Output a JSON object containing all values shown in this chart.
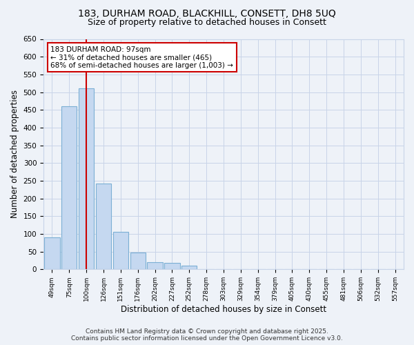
{
  "title1": "183, DURHAM ROAD, BLACKHILL, CONSETT, DH8 5UQ",
  "title2": "Size of property relative to detached houses in Consett",
  "xlabel": "Distribution of detached houses by size in Consett",
  "ylabel": "Number of detached properties",
  "categories": [
    "49sqm",
    "75sqm",
    "100sqm",
    "126sqm",
    "151sqm",
    "176sqm",
    "202sqm",
    "227sqm",
    "252sqm",
    "278sqm",
    "303sqm",
    "329sqm",
    "354sqm",
    "379sqm",
    "405sqm",
    "430sqm",
    "455sqm",
    "481sqm",
    "506sqm",
    "532sqm",
    "557sqm"
  ],
  "values": [
    90,
    460,
    510,
    242,
    105,
    48,
    20,
    18,
    10,
    0,
    0,
    0,
    0,
    0,
    0,
    0,
    0,
    0,
    0,
    0,
    0
  ],
  "bar_color": "#c5d8f0",
  "bar_edge_color": "#7bafd4",
  "vline_x": 2,
  "vline_color": "#cc0000",
  "annotation_text": "183 DURHAM ROAD: 97sqm\n← 31% of detached houses are smaller (465)\n68% of semi-detached houses are larger (1,003) →",
  "annotation_box_color": "#ffffff",
  "annotation_box_edge": "#cc0000",
  "ylim": [
    0,
    650
  ],
  "yticks": [
    0,
    50,
    100,
    150,
    200,
    250,
    300,
    350,
    400,
    450,
    500,
    550,
    600,
    650
  ],
  "grid_color": "#c8d4e8",
  "background_color": "#eef2f8",
  "plot_bg_color": "#eef2f8",
  "footer1": "Contains HM Land Registry data © Crown copyright and database right 2025.",
  "footer2": "Contains public sector information licensed under the Open Government Licence v3.0.",
  "title1_fontsize": 10,
  "title2_fontsize": 9,
  "annotation_fontsize": 7.5,
  "footer_fontsize": 6.5
}
